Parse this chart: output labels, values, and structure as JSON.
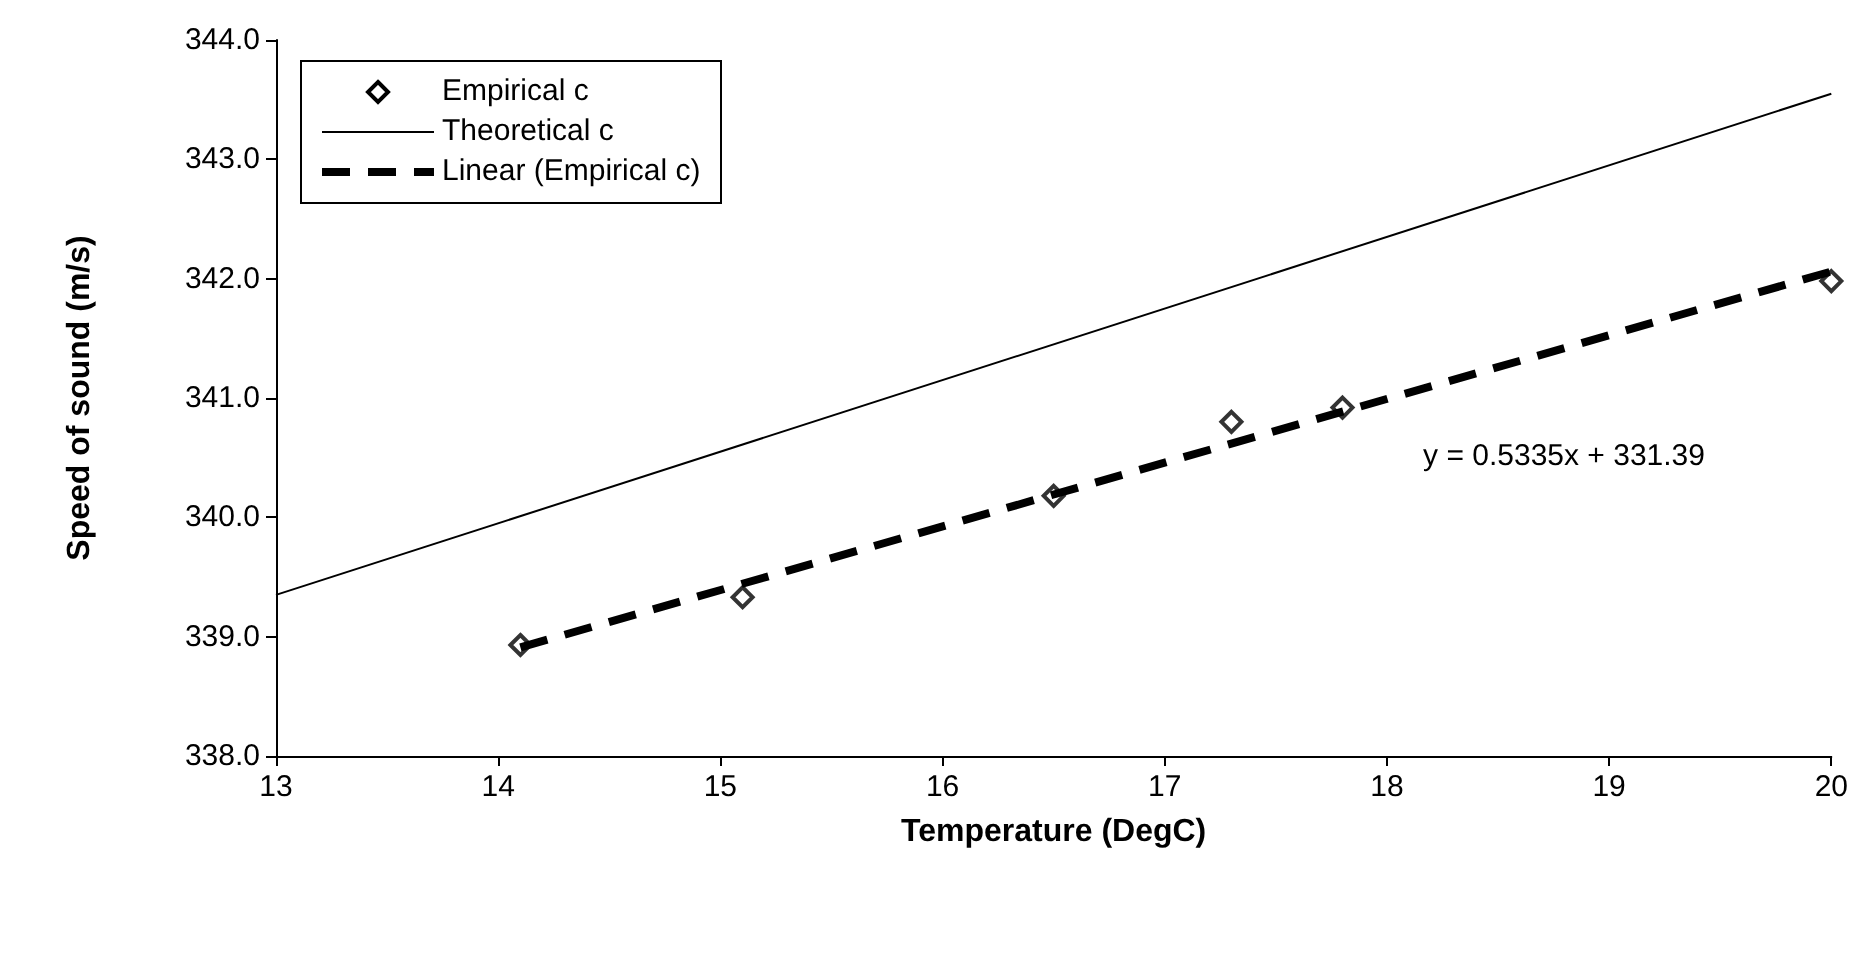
{
  "chart_data": {
    "type": "scatter",
    "xlabel": "Temperature (DegC)",
    "ylabel": "Speed of sound (m/s)",
    "xlim": [
      13,
      20
    ],
    "xticks": [
      13,
      14,
      15,
      16,
      17,
      18,
      19,
      20
    ],
    "ylim": [
      338,
      344
    ],
    "yticks": [
      {
        "value": 338,
        "label": "338.0"
      },
      {
        "value": 339,
        "label": "339.0"
      },
      {
        "value": 340,
        "label": "340.0"
      },
      {
        "value": 341,
        "label": "341.0"
      },
      {
        "value": 342,
        "label": "342.0"
      },
      {
        "value": 343,
        "label": "343.0"
      },
      {
        "value": 344,
        "label": "344.0"
      }
    ],
    "grid": false,
    "legend": "top left",
    "annotations": [
      "y = 0.5335x + 331.39"
    ],
    "series": [
      {
        "name": "Empirical c",
        "marker": "diamond",
        "color": "#000000",
        "x": [
          14.1,
          15.1,
          16.5,
          17.3,
          17.8,
          20.0
        ],
        "values": [
          338.93,
          339.33,
          340.18,
          340.8,
          340.92,
          341.98
        ]
      },
      {
        "name": "Theoretical c",
        "type": "line",
        "marker": "none",
        "line_style": "solid",
        "color": "#000000",
        "x": [
          13,
          20
        ],
        "values": [
          339.35,
          343.55
        ]
      },
      {
        "name": "Linear (Empirical c)",
        "type": "line",
        "marker": "none",
        "line_style": "dashed",
        "color": "#000000",
        "x": [
          14.1,
          20
        ],
        "values": [
          338.91,
          342.06
        ]
      }
    ]
  }
}
